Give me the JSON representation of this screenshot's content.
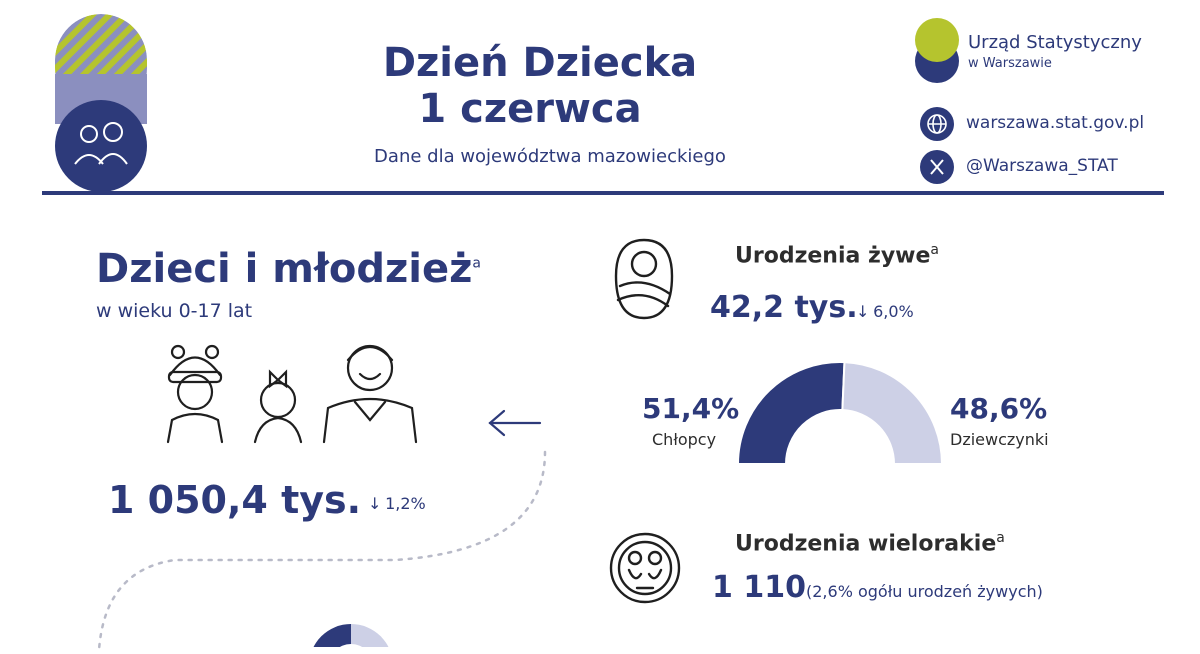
{
  "header": {
    "title_line1": "Dzień Dziecka",
    "title_line2": "1 czerwca",
    "subtitle": "Dane dla województwa mazowieckiego",
    "org_name": "Urząd Statystyczny",
    "org_city": "w Warszawie",
    "website": "warszawa.stat.gov.pl",
    "social": "@Warszawa_STAT"
  },
  "children": {
    "title": "Dzieci i młodzież",
    "note": "a",
    "age": "w wieku 0-17 lat",
    "value": "1 050,4 tys.",
    "change": "1,2%"
  },
  "births": {
    "title": "Urodzenia żywe",
    "note": "a",
    "value": "42,2 tys.",
    "change": "6,0%",
    "boys_pct": "51,4%",
    "boys_label": "Chłopcy",
    "girls_pct": "48,6%",
    "girls_label": "Dziewczynki"
  },
  "multiple": {
    "title": "Urodzenia wielorakie",
    "note": "a",
    "value": "1 110",
    "share": "(2,6% ogółu urodzeń żywych)"
  },
  "chart_data": {
    "type": "pie",
    "categories": [
      "Chłopcy",
      "Dziewczynki"
    ],
    "values": [
      51.4,
      48.6
    ],
    "colors": [
      "#2d3a7a",
      "#cdd0e6"
    ]
  }
}
